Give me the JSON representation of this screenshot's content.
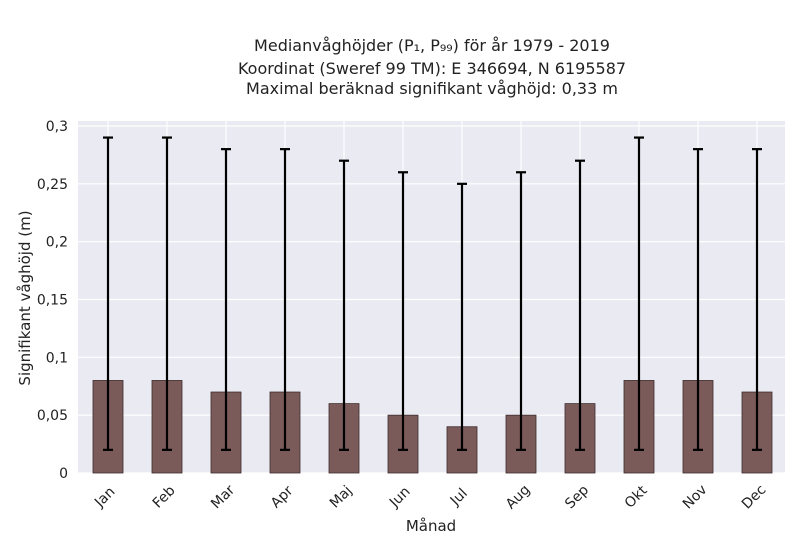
{
  "chart_data": {
    "type": "bar",
    "title_lines": [
      "Medianvåghöjder (P₁, P₉₉) för år 1979 - 2019",
      "Koordinat (Sweref 99 TM): E 346694, N 6195587",
      "Maximal beräknad signifikant våghöjd: 0,33 m"
    ],
    "xlabel": "Månad",
    "ylabel": "Signifikant våghöjd (m)",
    "ylim": [
      0,
      0.3
    ],
    "yticks": [
      "0",
      "0,05",
      "0,1",
      "0,15",
      "0,2",
      "0,25",
      "0,3"
    ],
    "yticks_values": [
      0,
      0.05,
      0.1,
      0.15,
      0.2,
      0.25,
      0.3
    ],
    "categories": [
      "Jan",
      "Feb",
      "Mar",
      "Apr",
      "Maj",
      "Jun",
      "Jul",
      "Aug",
      "Sep",
      "Okt",
      "Nov",
      "Dec"
    ],
    "values": [
      0.08,
      0.08,
      0.07,
      0.07,
      0.06,
      0.05,
      0.04,
      0.05,
      0.06,
      0.08,
      0.08,
      0.07
    ],
    "error_low": [
      0.02,
      0.02,
      0.02,
      0.02,
      0.02,
      0.02,
      0.02,
      0.02,
      0.02,
      0.02,
      0.02,
      0.02
    ],
    "error_high": [
      0.29,
      0.29,
      0.28,
      0.28,
      0.27,
      0.26,
      0.25,
      0.26,
      0.27,
      0.29,
      0.28,
      0.28
    ],
    "grid": true,
    "colors": {
      "bar": "#7b5a5a",
      "bar_edge": "#3c2c2c",
      "plot_bg": "#eaeaf2",
      "grid": "#ffffff",
      "error": "#000000"
    }
  }
}
